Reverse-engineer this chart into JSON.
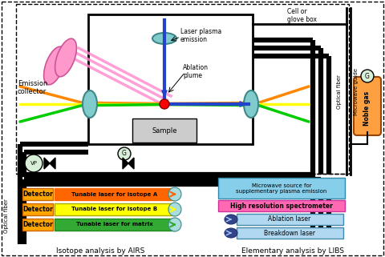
{
  "bg": "#ffffff",
  "cell_glove_box_text": "Cell or\nglove box",
  "microwave_guide_text": "Microwave guide",
  "optical_fiber_right_text": "Optical fiber",
  "optical_fiber_left_text": "Optical fiber",
  "noble_gas_text": "Noble gas",
  "vp_text": "VP",
  "g_text": "G",
  "sample_text": "Sample",
  "laser_plasma_text": "Laser plasma\nemission",
  "ablation_plume_text": "Ablation\nplume",
  "emission_collector_text": "Emission\ncollector",
  "microwave_source_text": "Microwave source for\nsupplementary plasma emission",
  "high_resolution_text": "High resolution spectrometer",
  "ablation_laser_text": "Ablation laser",
  "breakdown_laser_text": "Breakdown laser",
  "isotope_analysis_text": "Isotope analysis by AIRS",
  "elementary_analysis_text": "Elementary analysis by LIBS",
  "detector_color": "#ffa500",
  "detector_text": "Detector",
  "laser_a_color": "#ff6600",
  "laser_a_text": "Tunable laser for isotope A",
  "laser_b_color": "#ffff00",
  "laser_b_text": "Tunable laser for isotope B",
  "laser_matrix_color": "#33aa33",
  "laser_matrix_text": "Tunable laser for matrix",
  "microwave_box_color": "#87ceeb",
  "high_res_box_color": "#ff69b4",
  "laser_box_color": "#b0d8f0",
  "noble_gas_box_color": "#ffa040",
  "teal_lens_color": "#80cccc",
  "teal_lens_edge": "#408888"
}
